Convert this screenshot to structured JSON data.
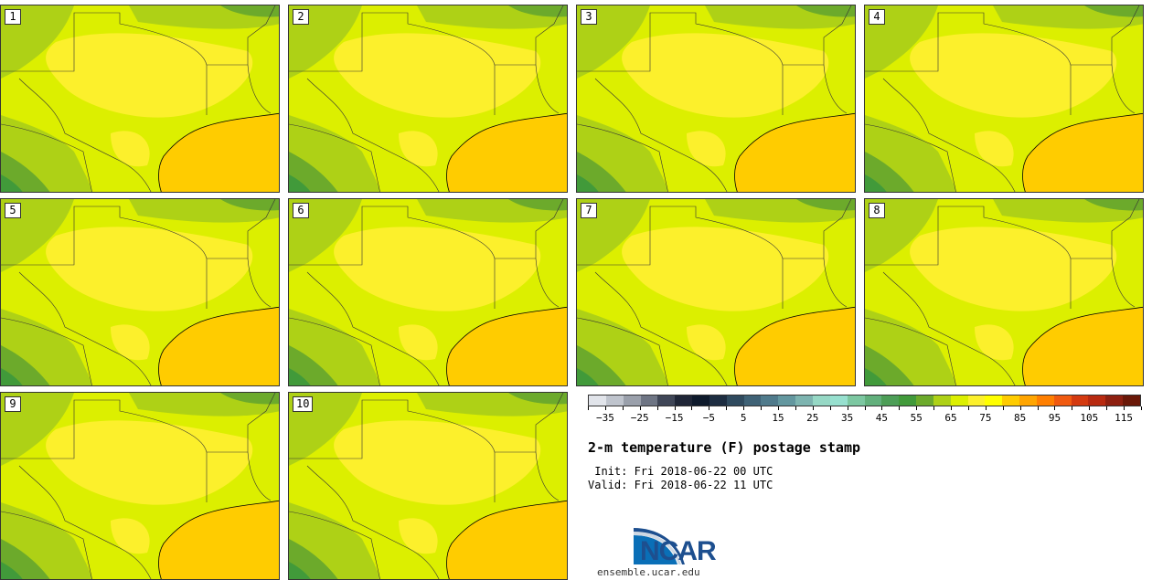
{
  "panels": [
    {
      "label": "1"
    },
    {
      "label": "2"
    },
    {
      "label": "3"
    },
    {
      "label": "4"
    },
    {
      "label": "5"
    },
    {
      "label": "6"
    },
    {
      "label": "7"
    },
    {
      "label": "8"
    },
    {
      "label": "9"
    },
    {
      "label": "10"
    }
  ],
  "colorbar": {
    "colors": [
      "#e1e4ea",
      "#bfc4cd",
      "#9aa0ab",
      "#6e7584",
      "#3f4657",
      "#1f2637",
      "#0e1a2c",
      "#1d2d41",
      "#2f4a5e",
      "#3f6276",
      "#507b8c",
      "#63979f",
      "#7db4b0",
      "#96d8c5",
      "#97e0cf",
      "#7cc7a1",
      "#62b07c",
      "#4d9e57",
      "#419a3a",
      "#6caa2b",
      "#aed116",
      "#dcef00",
      "#fcf02c",
      "#ffff00",
      "#ffcc00",
      "#ffa500",
      "#ff7f00",
      "#f05a10",
      "#d43a10",
      "#b82a10",
      "#8e2010",
      "#6a1808"
    ],
    "tick_labels": [
      "−35",
      "−25",
      "−15",
      "−5",
      "5",
      "15",
      "25",
      "35",
      "45",
      "55",
      "65",
      "75",
      "85",
      "95",
      "105",
      "115"
    ]
  },
  "title": "2-m temperature (F) postage stamp",
  "init_text": " Init: Fri 2018-06-22 00 UTC",
  "valid_text": "Valid: Fri 2018-06-22 11 UTC",
  "logo": {
    "text": "NCAR",
    "url": "ensemble.ucar.edu"
  },
  "map_colors": {
    "land": "#dcef00",
    "warm": "#fcf02c",
    "cool": "#aed116",
    "cooler": "#6caa2b",
    "coolest": "#419a3a",
    "gulf": "#ffcc00",
    "border": "#333333"
  }
}
